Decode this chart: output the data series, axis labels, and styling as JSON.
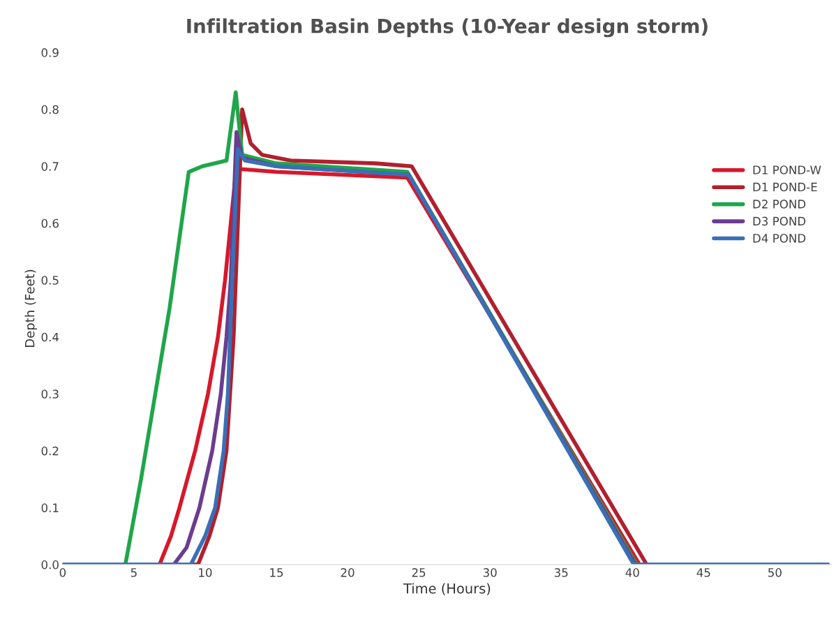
{
  "chart_data": {
    "type": "line",
    "title": "Infiltration Basin Depths (10-Year design storm)",
    "xlabel": "Time (Hours)",
    "ylabel": "Depth (Feet)",
    "xlim": [
      0,
      54
    ],
    "xticks": [
      0,
      5,
      10,
      15,
      20,
      25,
      30,
      35,
      40,
      45,
      50
    ],
    "ylim": [
      0,
      0.9
    ],
    "yticks": [
      {
        "value": 0,
        "label": "0.0"
      },
      0.1,
      0.2,
      0.3,
      0.4,
      0.5,
      0.6,
      0.7,
      0.8,
      0.9
    ],
    "grid": false,
    "legend": "right",
    "marker": "none",
    "line_style": "solid",
    "series": [
      {
        "name": "D1 POND-W",
        "color": "#d7182a",
        "x": [
          0,
          6.8,
          7.6,
          8.2,
          9.3,
          10.2,
          10.9,
          11.4,
          11.8,
          12.2,
          12.5,
          15,
          24.2,
          40.5,
          53.7
        ],
        "values": [
          0,
          0,
          0.05,
          0.1,
          0.2,
          0.3,
          0.4,
          0.5,
          0.6,
          0.7,
          0.695,
          0.69,
          0.68,
          0,
          0
        ]
      },
      {
        "name": "D1 POND-E",
        "color": "#b0202e",
        "x": [
          0,
          9.5,
          10.3,
          10.9,
          11.5,
          12.0,
          12.3,
          12.6,
          13.2,
          14,
          16,
          22,
          24.5,
          41.0,
          53.7
        ],
        "values": [
          0,
          0,
          0.05,
          0.1,
          0.2,
          0.4,
          0.6,
          0.8,
          0.74,
          0.72,
          0.71,
          0.705,
          0.7,
          0,
          0
        ]
      },
      {
        "name": "D2 POND",
        "color": "#1fa64a",
        "x": [
          0,
          4.4,
          5.5,
          6.5,
          7.5,
          8.85,
          9.8,
          11.5,
          12.15,
          12.6,
          15,
          24.2,
          40.3,
          53.7
        ],
        "values": [
          0,
          0,
          0.15,
          0.3,
          0.45,
          0.69,
          0.7,
          0.71,
          0.83,
          0.72,
          0.705,
          0.69,
          0,
          0
        ]
      },
      {
        "name": "D3 POND",
        "color": "#6a3d8f",
        "x": [
          0,
          7.8,
          8.7,
          9.6,
          10.5,
          11.1,
          11.5,
          11.8,
          12.2,
          12.6,
          15,
          24.3,
          40.2,
          53.7
        ],
        "values": [
          0,
          0,
          0.03,
          0.1,
          0.2,
          0.3,
          0.4,
          0.5,
          0.76,
          0.715,
          0.7,
          0.685,
          0,
          0
        ]
      },
      {
        "name": "D4 POND",
        "color": "#3a6fb5",
        "x": [
          0,
          9.0,
          10.0,
          10.7,
          11.3,
          11.6,
          11.9,
          12.3,
          12.8,
          15,
          24.3,
          40.1,
          53.7
        ],
        "values": [
          0,
          0,
          0.05,
          0.1,
          0.2,
          0.3,
          0.5,
          0.73,
          0.71,
          0.7,
          0.685,
          0,
          0
        ]
      }
    ]
  }
}
